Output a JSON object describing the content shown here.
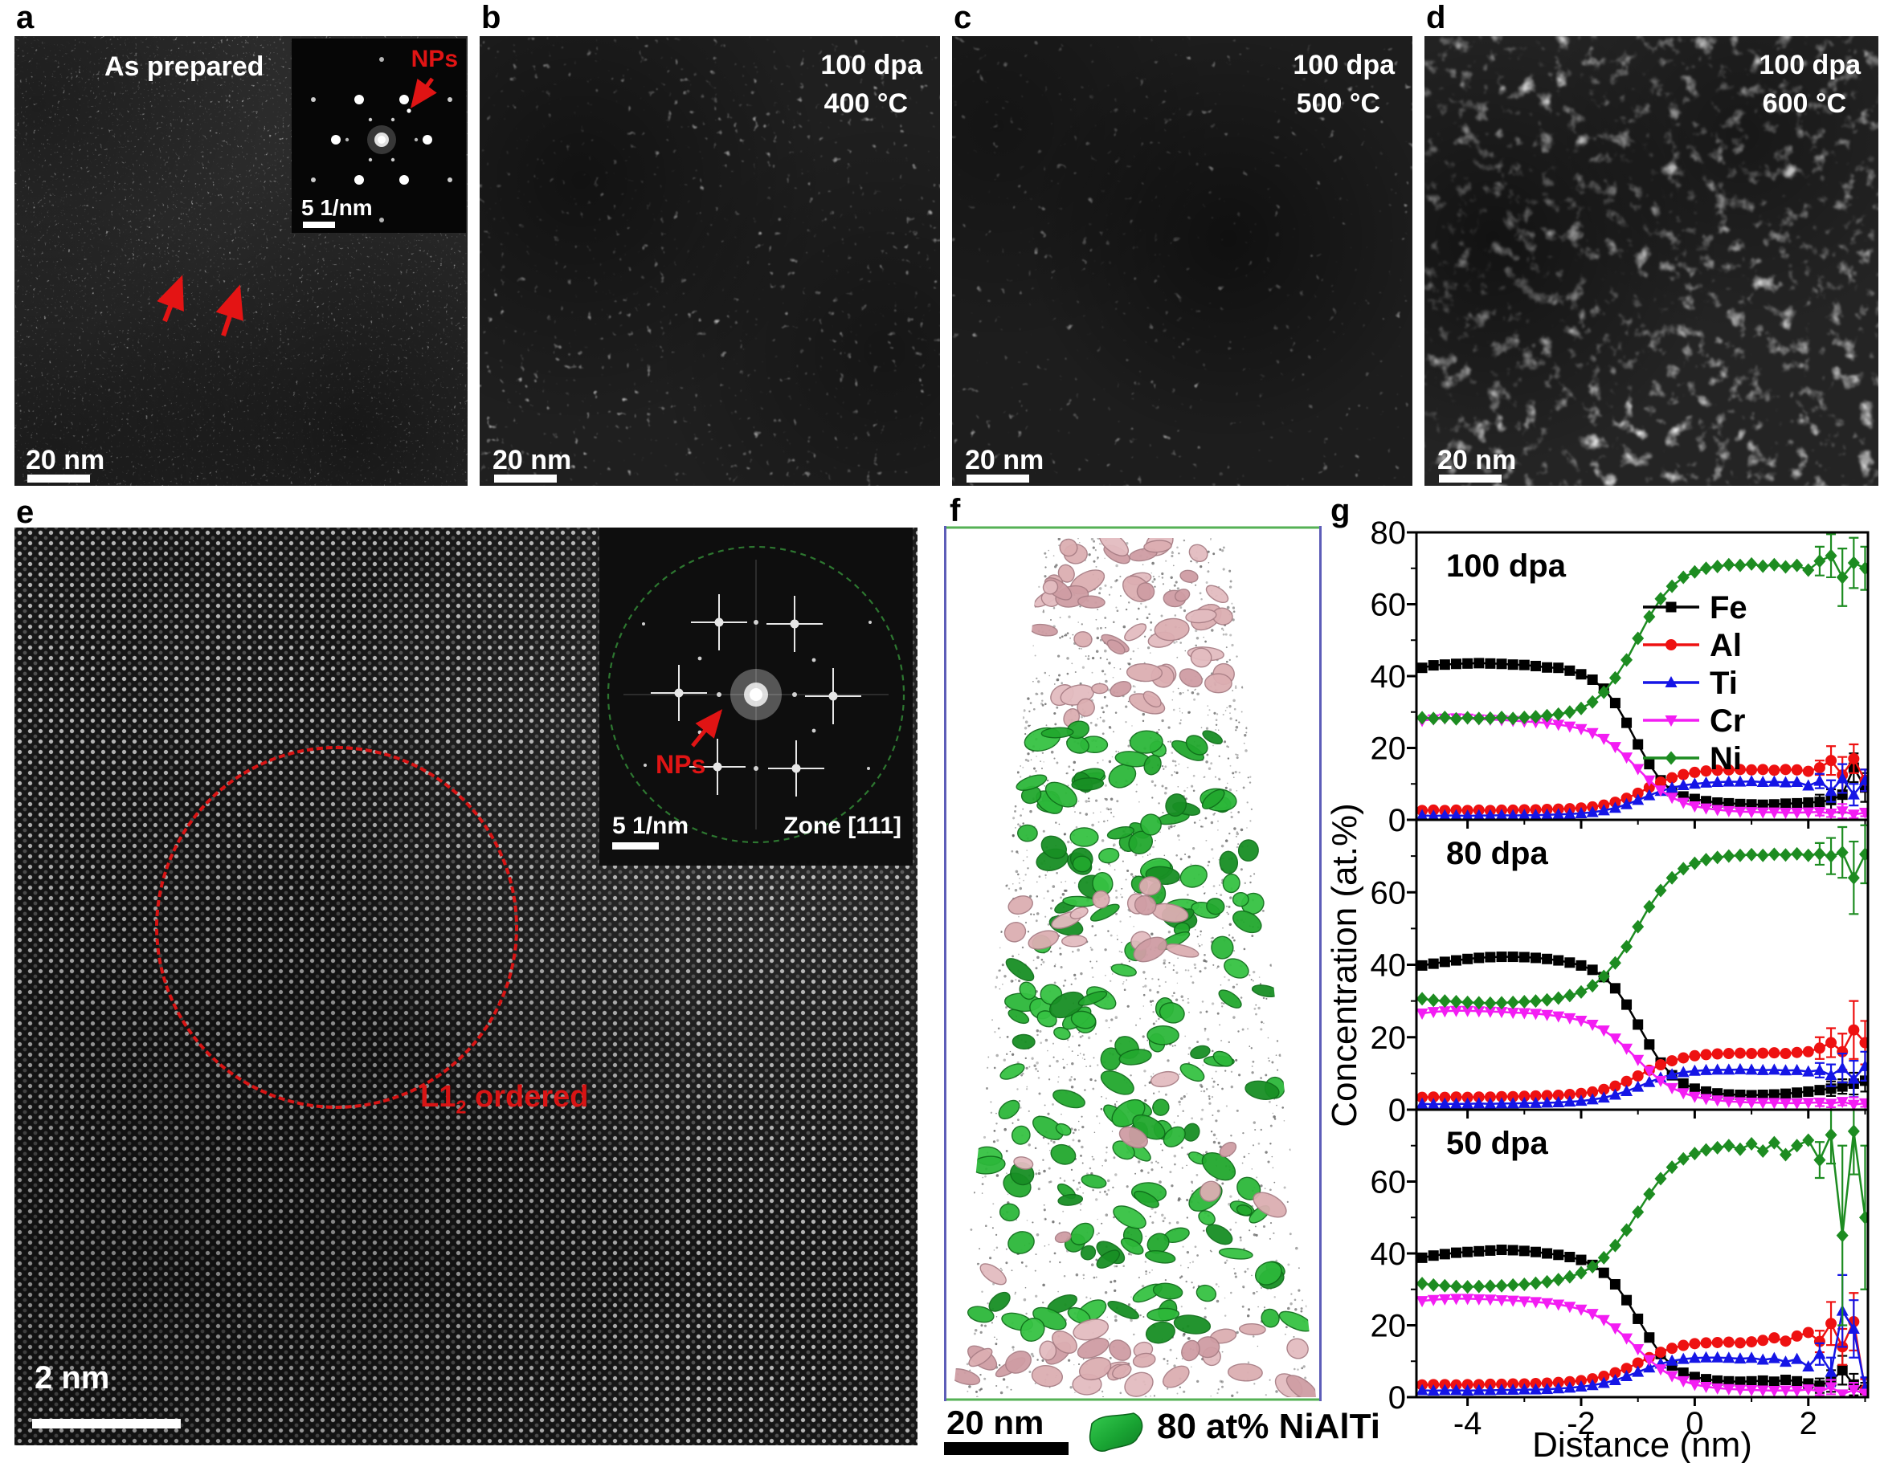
{
  "figure": {
    "annotation_color": "#e01414",
    "panels": {
      "a": {
        "letter": "a",
        "title": "As prepared",
        "scalebar_label": "20 nm",
        "inset": {
          "label": "NPs",
          "scalebar_label": "5 1/nm"
        }
      },
      "b": {
        "letter": "b",
        "dose": "100 dpa",
        "temp": "400 °C",
        "scalebar_label": "20 nm"
      },
      "c": {
        "letter": "c",
        "dose": "100 dpa",
        "temp": "500 °C",
        "scalebar_label": "20 nm"
      },
      "d": {
        "letter": "d",
        "dose": "100 dpa",
        "temp": "600 °C",
        "scalebar_label": "20 nm"
      },
      "e": {
        "letter": "e",
        "scalebar_label": "2 nm",
        "region_label": {
          "main": "L1",
          "sub": "2",
          "rest": " ordered"
        },
        "inset": {
          "label": "NPs",
          "scalebar_label": "5 1/nm",
          "zone": "Zone [111]"
        }
      },
      "f": {
        "letter": "f",
        "scalebar_label": "20 nm",
        "legend_label": "80 at% NiAlTi",
        "colors": {
          "precipitate_green": "#23a832",
          "precipitate_pink": "#dcaeb2",
          "box_top_bottom": "#55b155",
          "box_sides": "#5d5db8",
          "matrix_dot": "#5a5a5a"
        }
      },
      "g": {
        "letter": "g"
      }
    }
  },
  "chart_data": {
    "type": "line",
    "xlabel": "Distance (nm)",
    "ylabel": "Concentration (at.%)",
    "xlim": [
      -4.9,
      3.05
    ],
    "ylim": [
      0,
      80
    ],
    "x_ticks": [
      -4,
      -2,
      0,
      2
    ],
    "x_minor_ticks": [
      -3,
      -1,
      1,
      3
    ],
    "y_ticks": [
      0,
      20,
      40,
      60,
      80
    ],
    "y_minor_ticks": [
      10,
      30,
      50,
      70
    ],
    "grid": false,
    "legend_position": "top-chart-right",
    "series_meta": [
      {
        "key": "Fe",
        "label": "Fe",
        "color": "#000000",
        "marker": "square"
      },
      {
        "key": "Al",
        "label": "Al",
        "color": "#ee1111",
        "marker": "circle"
      },
      {
        "key": "Ti",
        "label": "Ti",
        "color": "#1515e6",
        "marker": "triangle-up"
      },
      {
        "key": "Cr",
        "label": "Cr",
        "color": "#f31df3",
        "marker": "triangle-down"
      },
      {
        "key": "Ni",
        "label": "Ni",
        "color": "#1d8c21",
        "marker": "diamond"
      }
    ],
    "x": [
      -4.8,
      -4.6,
      -4.4,
      -4.2,
      -4.0,
      -3.8,
      -3.6,
      -3.4,
      -3.2,
      -3.0,
      -2.8,
      -2.6,
      -2.4,
      -2.2,
      -2.0,
      -1.8,
      -1.6,
      -1.4,
      -1.2,
      -1.0,
      -0.8,
      -0.6,
      -0.4,
      -0.2,
      0.0,
      0.2,
      0.4,
      0.6,
      0.8,
      1.0,
      1.2,
      1.4,
      1.6,
      1.8,
      2.0,
      2.2,
      2.4,
      2.6,
      2.8,
      3.0
    ],
    "charts": [
      {
        "label": "100 dpa",
        "series": {
          "Fe": [
            42.3,
            43.0,
            43.2,
            43.4,
            43.5,
            43.6,
            43.5,
            43.4,
            43.2,
            43.1,
            42.8,
            42.4,
            42.3,
            41.5,
            40.5,
            39.0,
            36.5,
            32.5,
            27.0,
            21.0,
            15.5,
            11.0,
            8.0,
            6.5,
            5.8,
            5.2,
            4.8,
            4.6,
            4.4,
            4.3,
            4.2,
            4.3,
            4.5,
            4.6,
            4.8,
            5.0,
            5.5,
            7.0,
            14.5,
            9.0
          ],
          "Al": [
            2.6,
            2.7,
            2.6,
            2.7,
            2.6,
            2.7,
            2.6,
            2.7,
            2.7,
            2.8,
            2.8,
            2.9,
            3.0,
            3.1,
            3.3,
            3.6,
            4.1,
            4.9,
            6.0,
            7.4,
            9.0,
            10.5,
            11.7,
            12.6,
            13.2,
            13.6,
            13.8,
            13.9,
            14.0,
            13.9,
            14.0,
            13.8,
            14.0,
            13.9,
            13.5,
            14.5,
            16.5,
            12.5,
            17.0,
            11.0
          ],
          "Ti": [
            1.2,
            1.1,
            1.2,
            1.2,
            1.1,
            1.2,
            1.2,
            1.3,
            1.2,
            1.3,
            1.3,
            1.4,
            1.5,
            1.6,
            1.8,
            2.1,
            2.6,
            3.3,
            4.3,
            5.5,
            6.8,
            8.0,
            8.9,
            9.6,
            10.0,
            10.3,
            10.5,
            10.6,
            10.6,
            10.7,
            10.5,
            10.6,
            10.4,
            10.5,
            9.5,
            10.8,
            8.0,
            11.5,
            7.0,
            11.0
          ],
          "Cr": [
            27.6,
            28.0,
            28.2,
            28.3,
            28.2,
            28.0,
            27.9,
            27.8,
            27.6,
            27.4,
            27.2,
            26.9,
            26.5,
            26.0,
            25.3,
            24.2,
            22.6,
            20.3,
            17.4,
            14.2,
            11.0,
            8.2,
            6.2,
            4.8,
            3.8,
            3.2,
            2.8,
            2.5,
            2.3,
            2.2,
            2.1,
            2.1,
            2.0,
            2.0,
            2.1,
            2.2,
            1.8,
            2.4,
            1.5,
            2.0
          ],
          "Ni": [
            28.4,
            28.2,
            28.5,
            28.1,
            28.4,
            28.2,
            28.3,
            28.5,
            28.2,
            28.5,
            28.7,
            29.0,
            29.4,
            30.0,
            31.0,
            32.8,
            35.5,
            39.5,
            44.5,
            50.5,
            56.5,
            61.5,
            65.0,
            67.5,
            69.0,
            70.0,
            70.5,
            71.0,
            70.8,
            71.2,
            70.6,
            71.0,
            70.4,
            70.8,
            69.5,
            72.0,
            73.5,
            67.5,
            71.5,
            70.0
          ]
        },
        "err_tail": {
          "start": 35,
          "Fe": [
            2,
            3,
            5,
            4,
            4
          ],
          "Al": [
            2,
            4,
            5,
            4,
            3
          ],
          "Ti": [
            2,
            3,
            4,
            3,
            3
          ],
          "Cr": [
            1,
            1,
            2,
            1,
            1
          ],
          "Ni": [
            4,
            6,
            8,
            7,
            6
          ]
        }
      },
      {
        "label": "80 dpa",
        "series": {
          "Fe": [
            39.8,
            40.3,
            40.8,
            41.2,
            41.6,
            41.9,
            42.1,
            42.2,
            42.2,
            42.1,
            41.9,
            41.6,
            41.2,
            40.6,
            39.8,
            38.6,
            36.6,
            33.5,
            29.0,
            23.5,
            18.0,
            13.0,
            9.5,
            7.2,
            5.8,
            5.0,
            4.5,
            4.2,
            4.1,
            4.0,
            4.1,
            4.2,
            4.4,
            4.7,
            5.0,
            5.4,
            5.8,
            6.4,
            7.2,
            8.0
          ],
          "Al": [
            3.4,
            3.5,
            3.4,
            3.5,
            3.4,
            3.5,
            3.5,
            3.6,
            3.6,
            3.7,
            3.8,
            3.9,
            4.0,
            4.2,
            4.5,
            4.9,
            5.6,
            6.5,
            7.8,
            9.3,
            10.9,
            12.4,
            13.5,
            14.3,
            14.9,
            15.2,
            15.4,
            15.5,
            15.6,
            15.5,
            15.6,
            15.7,
            15.5,
            15.8,
            16.0,
            17.0,
            18.5,
            16.0,
            22.0,
            18.5
          ],
          "Ti": [
            1.6,
            1.5,
            1.6,
            1.6,
            1.6,
            1.7,
            1.6,
            1.7,
            1.7,
            1.8,
            1.8,
            1.9,
            2.0,
            2.2,
            2.4,
            2.8,
            3.3,
            4.1,
            5.1,
            6.3,
            7.6,
            8.8,
            9.7,
            10.3,
            10.7,
            10.9,
            11.0,
            11.0,
            11.1,
            11.0,
            10.9,
            11.0,
            10.8,
            10.9,
            10.5,
            10.9,
            9.5,
            11.5,
            8.5,
            12.0
          ],
          "Cr": [
            26.6,
            27.0,
            27.2,
            27.3,
            27.3,
            27.2,
            27.1,
            27.0,
            26.8,
            26.7,
            26.5,
            26.2,
            25.8,
            25.3,
            24.6,
            23.5,
            21.9,
            19.7,
            16.9,
            13.8,
            10.7,
            8.0,
            6.0,
            4.6,
            3.6,
            3.0,
            2.6,
            2.3,
            2.1,
            2.0,
            1.9,
            1.9,
            1.8,
            1.8,
            1.9,
            2.0,
            1.7,
            2.2,
            1.4,
            1.8
          ],
          "Ni": [
            30.6,
            30.2,
            30.0,
            29.8,
            29.6,
            29.5,
            29.4,
            29.5,
            29.6,
            29.8,
            30.0,
            30.3,
            30.8,
            31.5,
            32.5,
            34.2,
            36.8,
            40.5,
            45.0,
            50.5,
            56.0,
            60.5,
            64.0,
            66.5,
            68.0,
            69.0,
            69.6,
            70.0,
            70.2,
            70.4,
            70.2,
            70.5,
            70.3,
            70.6,
            70.2,
            70.6,
            70.0,
            71.0,
            64.0,
            70.5
          ]
        },
        "err_tail": {
          "start": 35,
          "Fe": [
            1,
            2,
            2,
            3,
            3
          ],
          "Al": [
            3,
            4,
            5,
            8,
            6
          ],
          "Ti": [
            2,
            3,
            4,
            5,
            4
          ],
          "Cr": [
            1,
            1,
            1,
            2,
            1
          ],
          "Ni": [
            3,
            5,
            7,
            10,
            8
          ]
        }
      },
      {
        "label": "50 dpa",
        "series": {
          "Fe": [
            38.8,
            39.4,
            39.8,
            40.2,
            40.4,
            40.6,
            40.8,
            41.0,
            40.9,
            40.7,
            40.4,
            40.0,
            39.6,
            39.0,
            38.2,
            36.8,
            34.6,
            31.4,
            27.0,
            21.8,
            16.6,
            12.0,
            8.8,
            6.8,
            5.6,
            5.0,
            4.6,
            4.4,
            4.3,
            4.4,
            4.6,
            4.3,
            4.8,
            4.4,
            3.8,
            3.2,
            4.5,
            7.5,
            3.5,
            2.0
          ],
          "Al": [
            3.4,
            3.5,
            3.5,
            3.4,
            3.5,
            3.5,
            3.6,
            3.6,
            3.7,
            3.7,
            3.8,
            3.9,
            4.1,
            4.3,
            4.6,
            5.1,
            5.8,
            6.8,
            8.0,
            9.5,
            11.0,
            12.5,
            13.6,
            14.4,
            14.9,
            15.1,
            15.2,
            15.3,
            15.1,
            15.4,
            15.8,
            16.5,
            15.6,
            17.0,
            18.0,
            15.5,
            20.5,
            14.0,
            21.0,
            2.0
          ],
          "Ti": [
            1.9,
            1.8,
            1.9,
            1.9,
            1.8,
            1.9,
            1.9,
            2.0,
            2.0,
            2.1,
            2.1,
            2.2,
            2.4,
            2.6,
            2.9,
            3.3,
            3.9,
            4.7,
            5.8,
            7.0,
            8.2,
            9.3,
            10.1,
            10.6,
            10.9,
            11.0,
            11.0,
            10.9,
            10.7,
            10.9,
            10.4,
            10.8,
            9.8,
            10.6,
            8.5,
            12.0,
            7.0,
            24.0,
            19.0,
            2.5
          ],
          "Cr": [
            26.8,
            27.1,
            27.3,
            27.4,
            27.4,
            27.3,
            27.2,
            27.0,
            26.9,
            26.7,
            26.5,
            26.2,
            25.8,
            25.2,
            24.4,
            23.2,
            21.5,
            19.2,
            16.4,
            13.4,
            10.4,
            7.8,
            5.9,
            4.5,
            3.5,
            2.9,
            2.5,
            2.3,
            2.1,
            2.0,
            1.9,
            1.8,
            1.9,
            1.8,
            2.2,
            1.6,
            2.8,
            0.8,
            2.0,
            1.0
          ],
          "Ni": [
            31.6,
            31.2,
            31.0,
            30.8,
            30.7,
            30.8,
            30.9,
            31.0,
            31.2,
            31.4,
            31.7,
            32.1,
            32.7,
            33.5,
            34.6,
            36.3,
            38.8,
            42.2,
            46.5,
            51.5,
            56.5,
            60.8,
            64.0,
            66.3,
            67.8,
            68.8,
            69.4,
            70.0,
            69.0,
            70.5,
            68.5,
            70.8,
            67.5,
            70.0,
            71.5,
            66.0,
            73.0,
            45.0,
            74.0,
            50.0
          ]
        },
        "err_tail": {
          "start": 35,
          "Fe": [
            2,
            3,
            4,
            3,
            2
          ],
          "Al": [
            3,
            6,
            5,
            8,
            3
          ],
          "Ti": [
            3,
            4,
            10,
            8,
            3
          ],
          "Cr": [
            1,
            2,
            1,
            2,
            1
          ],
          "Ni": [
            5,
            8,
            25,
            12,
            20
          ]
        }
      }
    ]
  }
}
